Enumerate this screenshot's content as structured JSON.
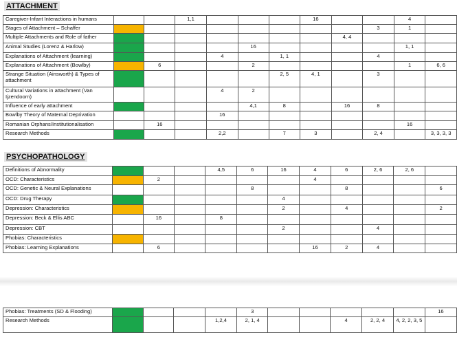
{
  "attachment": {
    "title": "ATTACHMENT",
    "rows": [
      {
        "topic": "Caregiver-Infant Interactions in humans",
        "status": "",
        "cells": [
          "",
          "1,1",
          "",
          "",
          "",
          "16",
          "",
          "",
          "4",
          ""
        ]
      },
      {
        "topic": "Stages of Attachment – Schaffer",
        "status": "amber",
        "cells": [
          "",
          "",
          "",
          "",
          "",
          "",
          "",
          "3",
          "1",
          ""
        ]
      },
      {
        "topic": "Multiple Attachments and Role of father",
        "status": "green",
        "cells": [
          "",
          "",
          "",
          "",
          "",
          "",
          "4, 4",
          "",
          "",
          ""
        ]
      },
      {
        "topic": "Animal Studies (Lorenz & Harlow)",
        "status": "green",
        "cells": [
          "",
          "",
          "",
          "16",
          "",
          "",
          "",
          "",
          "1, 1",
          ""
        ]
      },
      {
        "topic": "Explanations of Attachment (learning)",
        "status": "green",
        "cells": [
          "",
          "",
          "4",
          "",
          "1, 1",
          "",
          "",
          "4",
          "",
          ""
        ]
      },
      {
        "topic": "Explanations of Attachment (Bowlby)",
        "status": "amber",
        "cells": [
          "6",
          "",
          "",
          "2",
          "",
          "",
          "",
          "",
          "1",
          "6, 6"
        ]
      },
      {
        "topic": "Strange Situation (Ainsworth) & Types of attachment",
        "status": "green",
        "cells": [
          "",
          "",
          "",
          "",
          "2, 5",
          "4, 1",
          "",
          "3",
          "",
          ""
        ]
      },
      {
        "topic": "Cultural Variations in attachment (Van Ijzendoorn)",
        "status": "",
        "cells": [
          "",
          "",
          "4",
          "2",
          "",
          "",
          "",
          "",
          "",
          ""
        ]
      },
      {
        "topic": "Influence of early attachment",
        "status": "green",
        "cells": [
          "",
          "",
          "",
          "4,1",
          "8",
          "",
          "16",
          "8",
          "",
          ""
        ]
      },
      {
        "topic": "Bowlby Theory of Maternal Deprivation",
        "status": "",
        "cells": [
          "",
          "",
          "16",
          "",
          "",
          "",
          "",
          "",
          "",
          ""
        ]
      },
      {
        "topic": "Romanian Orphans/Institutionalisation",
        "status": "",
        "cells": [
          "16",
          "",
          "",
          "",
          "",
          "",
          "",
          "",
          "16",
          ""
        ]
      },
      {
        "topic": "Research Methods",
        "status": "green",
        "cells": [
          "",
          "",
          "2,2",
          "",
          "7",
          "3",
          "",
          "2, 4",
          "",
          "3, 3, 3, 3"
        ]
      }
    ]
  },
  "psychopathology": {
    "title": "PSYCHOPATHOLOGY",
    "rows": [
      {
        "topic": "Definitions of Abnormality",
        "status": "green",
        "cells": [
          "",
          "",
          "4,5",
          "6",
          "16",
          "4",
          "6",
          "2, 6",
          "2, 6",
          ""
        ]
      },
      {
        "topic": "OCD: Characteristics",
        "status": "amber",
        "cells": [
          "2",
          "",
          "",
          "",
          "",
          "4",
          "",
          "",
          "",
          ""
        ]
      },
      {
        "topic": "OCD: Genetic & Neural Explanations",
        "status": "",
        "cells": [
          "",
          "",
          "",
          "8",
          "",
          "",
          "8",
          "",
          "",
          "6"
        ]
      },
      {
        "topic": "OCD: Drug Therapy",
        "status": "green",
        "cells": [
          "",
          "",
          "",
          "",
          "4",
          "",
          "",
          "",
          "",
          ""
        ]
      },
      {
        "topic": "Depression: Characteristics",
        "status": "amber",
        "cells": [
          "",
          "",
          "",
          "",
          "2",
          "",
          "4",
          "",
          "",
          "2"
        ]
      },
      {
        "topic": "Depression: Beck & Ellis ABC",
        "status": "",
        "cells": [
          "16",
          "",
          "8",
          "",
          "",
          "",
          "",
          "",
          "",
          ""
        ]
      },
      {
        "topic": "Depression: CBT",
        "status": "",
        "cells": [
          "",
          "",
          "",
          "",
          "2",
          "",
          "",
          "4",
          "",
          ""
        ]
      },
      {
        "topic": "Phobias: Characteristics",
        "status": "amber",
        "cells": [
          "",
          "",
          "",
          "",
          "",
          "",
          "",
          "",
          "",
          ""
        ]
      },
      {
        "topic": "Phobias: Learning Explanations",
        "status": "",
        "cells": [
          "6",
          "",
          "",
          "",
          "",
          "16",
          "2",
          "4",
          "",
          ""
        ]
      }
    ]
  },
  "continued": {
    "rows": [
      {
        "topic": "Phobias: Treatments (SD & Flooding)",
        "status": "green",
        "cells": [
          "",
          "",
          "",
          "3",
          "",
          "",
          "",
          "",
          "",
          "16"
        ]
      },
      {
        "topic": "Research Methods",
        "status": "green",
        "cells": [
          "",
          "",
          "1,2,4",
          "2, 1, 4",
          "",
          "",
          "4",
          "2, 2, 4",
          "4, 2, 2, 3, 5",
          ""
        ]
      }
    ]
  },
  "colors": {
    "green": "#1aa64b",
    "amber": "#f7b400"
  }
}
